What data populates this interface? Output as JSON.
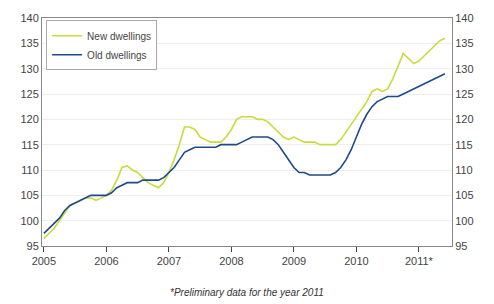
{
  "chart_data": {
    "type": "line",
    "x": [
      2005.0,
      2005.083,
      2005.167,
      2005.25,
      2005.333,
      2005.417,
      2005.5,
      2005.583,
      2005.667,
      2005.75,
      2005.833,
      2005.917,
      2006.0,
      2006.083,
      2006.167,
      2006.25,
      2006.333,
      2006.417,
      2006.5,
      2006.583,
      2006.667,
      2006.75,
      2006.833,
      2006.917,
      2007.0,
      2007.083,
      2007.167,
      2007.25,
      2007.333,
      2007.417,
      2007.5,
      2007.583,
      2007.667,
      2007.75,
      2007.833,
      2007.917,
      2008.0,
      2008.083,
      2008.167,
      2008.25,
      2008.333,
      2008.417,
      2008.5,
      2008.583,
      2008.667,
      2008.75,
      2008.833,
      2008.917,
      2009.0,
      2009.083,
      2009.167,
      2009.25,
      2009.333,
      2009.417,
      2009.5,
      2009.583,
      2009.667,
      2009.75,
      2009.833,
      2009.917,
      2010.0,
      2010.083,
      2010.167,
      2010.25,
      2010.333,
      2010.417,
      2010.5,
      2010.583,
      2010.667,
      2010.75,
      2010.833,
      2010.917,
      2011.0,
      2011.083,
      2011.167,
      2011.25,
      2011.333,
      2011.417
    ],
    "series": [
      {
        "name": "New dwellings",
        "color": "#c8dc3c",
        "values": [
          96.5,
          97.5,
          98.5,
          100.0,
          101.5,
          103.0,
          103.5,
          104.0,
          104.5,
          104.5,
          104.0,
          104.5,
          105.0,
          106.0,
          108.0,
          110.5,
          110.8,
          110.0,
          109.5,
          108.5,
          107.5,
          107.0,
          106.5,
          107.5,
          109.5,
          112.0,
          115.0,
          118.5,
          118.5,
          118.0,
          116.5,
          116.0,
          115.5,
          115.5,
          115.5,
          116.5,
          118.0,
          120.0,
          120.5,
          120.5,
          120.5,
          120.0,
          120.0,
          119.5,
          118.5,
          117.5,
          116.5,
          116.0,
          116.5,
          116.0,
          115.5,
          115.5,
          115.5,
          115.0,
          115.0,
          115.0,
          115.0,
          116.0,
          117.5,
          119.0,
          120.5,
          122.0,
          123.5,
          125.5,
          126.0,
          125.5,
          126.0,
          128.0,
          130.5,
          133.0,
          132.0,
          131.0,
          131.5,
          132.5,
          133.5,
          134.5,
          135.5,
          136.0
        ]
      },
      {
        "name": "Old dwellings",
        "color": "#1e4a8c",
        "values": [
          97.5,
          98.5,
          99.5,
          100.5,
          102.0,
          103.0,
          103.5,
          104.0,
          104.5,
          105.0,
          105.0,
          105.0,
          105.0,
          105.5,
          106.5,
          107.0,
          107.5,
          107.5,
          107.5,
          108.0,
          108.0,
          108.0,
          108.0,
          108.5,
          109.5,
          110.5,
          112.0,
          113.5,
          114.0,
          114.5,
          114.5,
          114.5,
          114.5,
          114.5,
          115.0,
          115.0,
          115.0,
          115.0,
          115.5,
          116.0,
          116.5,
          116.5,
          116.5,
          116.5,
          116.0,
          115.0,
          113.5,
          112.0,
          110.5,
          109.5,
          109.5,
          109.0,
          109.0,
          109.0,
          109.0,
          109.0,
          109.5,
          110.5,
          112.0,
          114.0,
          116.5,
          119.0,
          121.0,
          122.5,
          123.5,
          124.0,
          124.5,
          124.5,
          124.5,
          125.0,
          125.5,
          126.0,
          126.5,
          127.0,
          127.5,
          128.0,
          128.5,
          129.0
        ]
      }
    ],
    "xlim": [
      2004.97,
      2011.53
    ],
    "xticks": [
      2005,
      2006,
      2007,
      2008,
      2009,
      2010,
      {
        "value": 2011,
        "label": "2011*"
      }
    ],
    "ylim": [
      95,
      140
    ],
    "yticks": [
      95,
      100,
      105,
      110,
      115,
      120,
      125,
      130,
      135,
      140
    ],
    "y2lim": [
      95,
      140
    ],
    "y2ticks": [
      95,
      100,
      105,
      110,
      115,
      120,
      125,
      130,
      135,
      140
    ],
    "grid": true,
    "legend": "upper left",
    "annotations": [
      "*Preliminary data for the year 2011"
    ]
  }
}
